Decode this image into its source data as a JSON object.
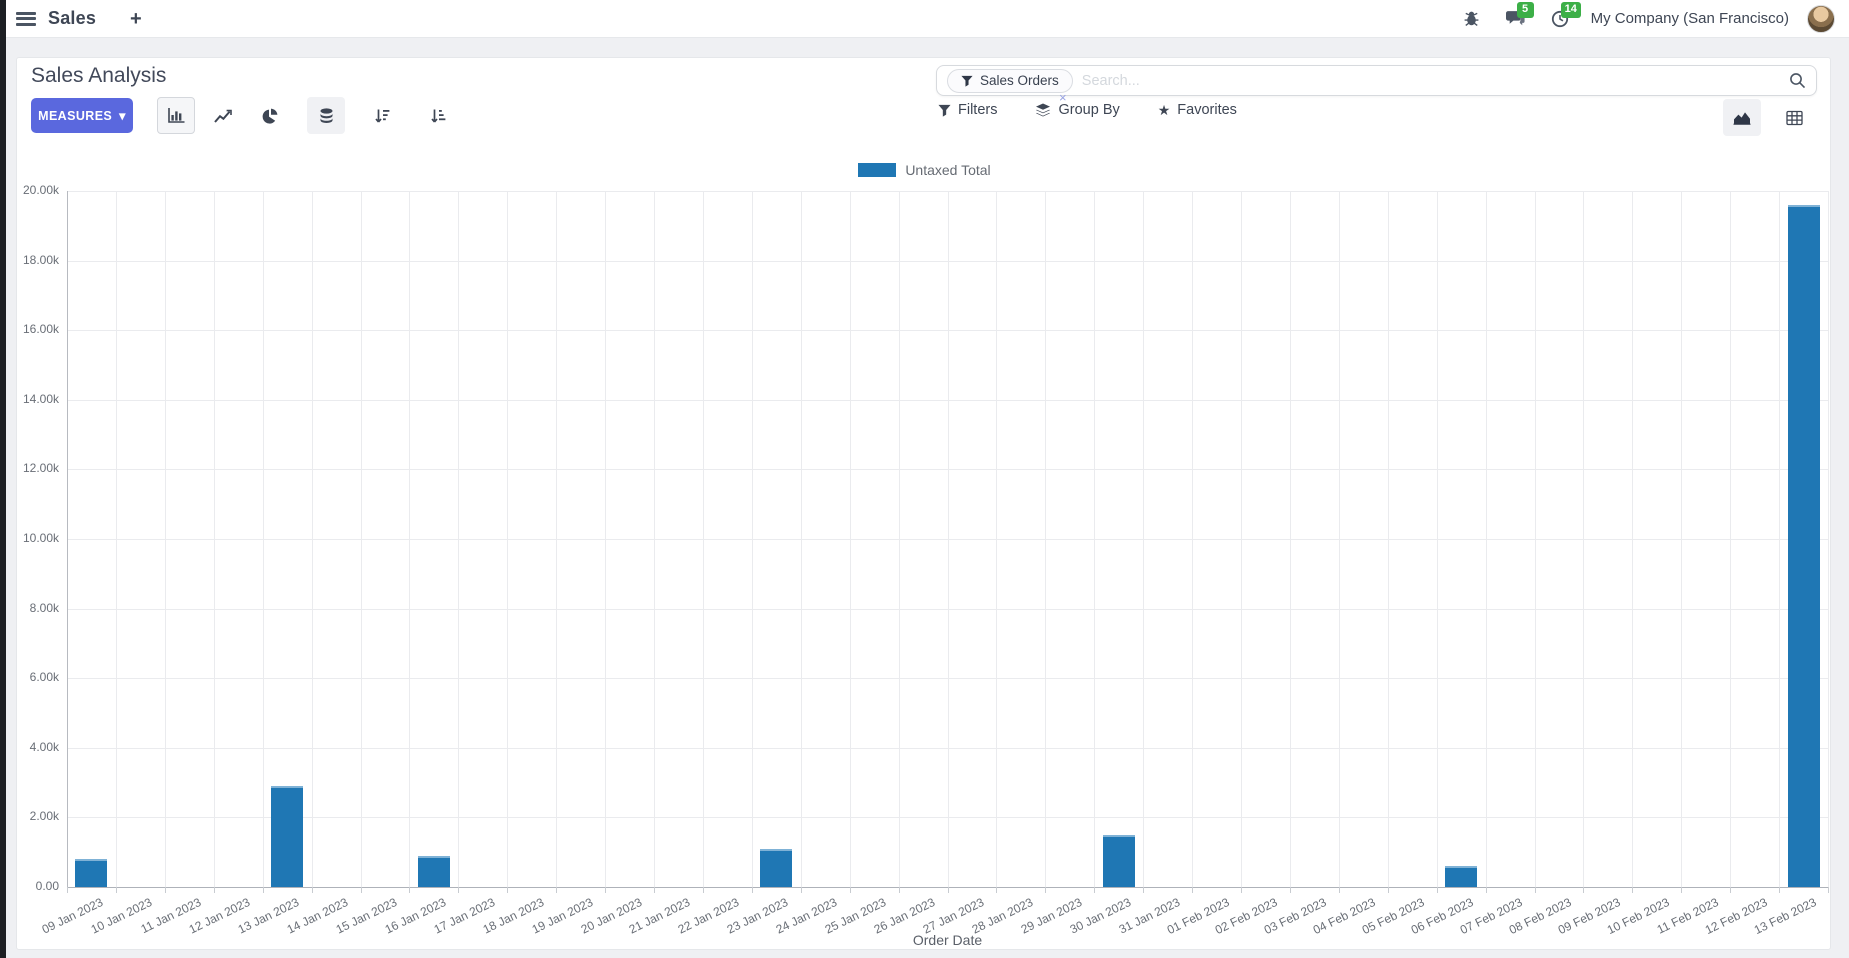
{
  "navbar": {
    "app_name": "Sales",
    "company": "My Company (San Francisco)",
    "badges": {
      "messages": "5",
      "activities": "14"
    }
  },
  "icons": {
    "plus": "+",
    "caret_down": "▾",
    "star": "★",
    "facet_remove": "×"
  },
  "colors": {
    "primary_button": "#5a68de",
    "badge_green": "#3caf47",
    "bar_blue": "#1f77b4"
  },
  "control_panel": {
    "title": "Sales Analysis",
    "measures_button": "MEASURES",
    "search": {
      "facet_label": "Sales Orders",
      "placeholder": "Search..."
    },
    "menus": [
      {
        "label": "Filters"
      },
      {
        "label": "Group By"
      },
      {
        "label": "Favorites"
      }
    ]
  },
  "chart_data": {
    "type": "bar",
    "title": "",
    "xlabel": "Order Date",
    "ylabel": "",
    "ylim": [
      0,
      20000
    ],
    "ytick_step": 2000,
    "grid": true,
    "legend_position": "top",
    "ytick_labels": [
      "20.00k",
      "18.00k",
      "16.00k",
      "14.00k",
      "12.00k",
      "10.00k",
      "8.00k",
      "6.00k",
      "4.00k",
      "2.00k",
      "0.00"
    ],
    "categories": [
      "09 Jan 2023",
      "10 Jan 2023",
      "11 Jan 2023",
      "12 Jan 2023",
      "13 Jan 2023",
      "14 Jan 2023",
      "15 Jan 2023",
      "16 Jan 2023",
      "17 Jan 2023",
      "18 Jan 2023",
      "19 Jan 2023",
      "20 Jan 2023",
      "21 Jan 2023",
      "22 Jan 2023",
      "23 Jan 2023",
      "24 Jan 2023",
      "25 Jan 2023",
      "26 Jan 2023",
      "27 Jan 2023",
      "28 Jan 2023",
      "29 Jan 2023",
      "30 Jan 2023",
      "31 Jan 2023",
      "01 Feb 2023",
      "02 Feb 2023",
      "03 Feb 2023",
      "04 Feb 2023",
      "05 Feb 2023",
      "06 Feb 2023",
      "07 Feb 2023",
      "08 Feb 2023",
      "09 Feb 2023",
      "10 Feb 2023",
      "11 Feb 2023",
      "12 Feb 2023",
      "13 Feb 2023"
    ],
    "series": [
      {
        "name": "Untaxed Total",
        "color": "#1f77b4",
        "values": [
          800,
          0,
          0,
          0,
          2900,
          0,
          0,
          900,
          0,
          0,
          0,
          0,
          0,
          0,
          1100,
          0,
          0,
          0,
          0,
          0,
          0,
          1500,
          0,
          0,
          0,
          0,
          0,
          0,
          600,
          0,
          0,
          0,
          0,
          0,
          0,
          19600
        ]
      }
    ]
  }
}
